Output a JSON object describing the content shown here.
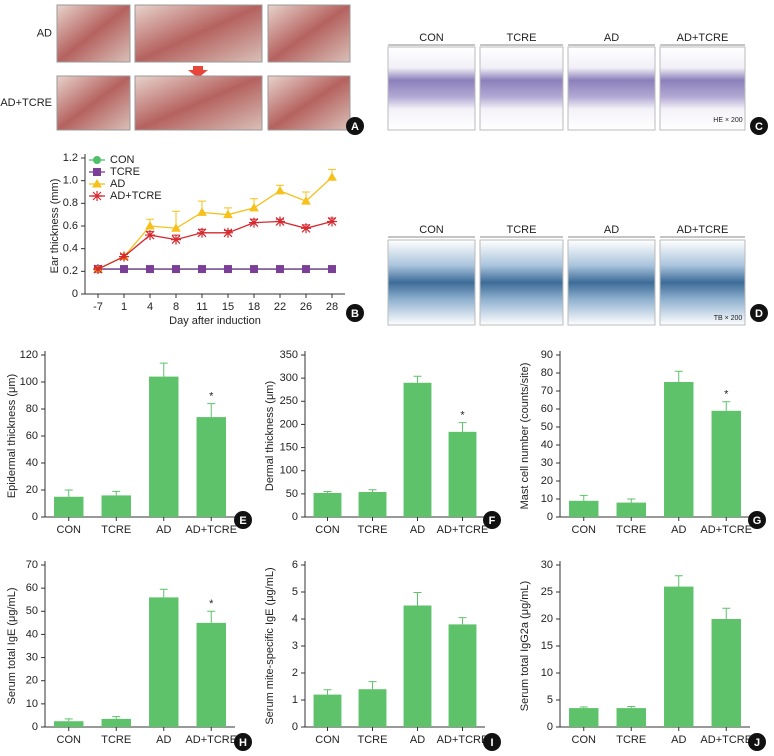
{
  "photo_panels": [
    {
      "letter": "A",
      "row_labels": [
        "AD",
        "AD+TCRE"
      ]
    },
    {
      "letter": "C",
      "column_labels": [
        "CON",
        "TCRE",
        "AD",
        "AD+TCRE"
      ],
      "stain": "HE × 200"
    },
    {
      "letter": "D",
      "column_labels": [
        "CON",
        "TCRE",
        "AD",
        "AD+TCRE"
      ],
      "stain": "TB × 200"
    }
  ],
  "chart_data": [
    {
      "type": "line",
      "letter": "B",
      "x_label": "Day after induction",
      "y_label": "Ear thickness (mm)",
      "categories": [
        "-7",
        "1",
        "4",
        "8",
        "11",
        "15",
        "18",
        "22",
        "26",
        "28"
      ],
      "ylim": [
        0,
        1.2
      ],
      "yticks": [
        0,
        0.2,
        0.4,
        0.6,
        0.8,
        {
          "value": 1,
          "label": "1.0"
        },
        1.2
      ],
      "legend": "top-left",
      "series": [
        {
          "name": "CON",
          "color": "#4fbf6a",
          "marker": "circle",
          "values": [
            0.22,
            0.22,
            0.22,
            0.22,
            0.22,
            0.22,
            0.22,
            0.22,
            0.22,
            0.22
          ],
          "errors": [
            0.01,
            0.01,
            0.01,
            0.01,
            0.01,
            0.01,
            0.01,
            0.01,
            0.01,
            0.01
          ]
        },
        {
          "name": "TCRE",
          "color": "#7b3f98",
          "marker": "square",
          "values": [
            0.22,
            0.22,
            0.22,
            0.22,
            0.22,
            0.22,
            0.22,
            0.22,
            0.22,
            0.22
          ],
          "errors": [
            0.01,
            0.01,
            0.01,
            0.01,
            0.01,
            0.01,
            0.01,
            0.01,
            0.01,
            0.01
          ]
        },
        {
          "name": "AD",
          "color": "#f5c11a",
          "marker": "triangle",
          "values": [
            0.22,
            0.33,
            0.6,
            0.58,
            0.72,
            0.7,
            0.76,
            0.91,
            0.82,
            1.03
          ],
          "errors": [
            0.01,
            0.02,
            0.06,
            0.15,
            0.1,
            0.06,
            0.08,
            0.05,
            0.08,
            0.07
          ]
        },
        {
          "name": "AD+TCRE",
          "color": "#d6282f",
          "marker": "star",
          "values": [
            0.22,
            0.33,
            0.52,
            0.48,
            0.54,
            0.54,
            0.63,
            0.64,
            0.58,
            0.64
          ],
          "errors": [
            0.01,
            0.02,
            0.03,
            0.04,
            0.03,
            0.02,
            0.03,
            0.02,
            0.03,
            0.03
          ]
        }
      ]
    },
    {
      "type": "bar",
      "letter": "E",
      "y_label": "Epidermal thickness (μm)",
      "color": "#5ec26a",
      "categories": [
        "CON",
        "TCRE",
        "AD",
        "AD+TCRE"
      ],
      "values": [
        15,
        16,
        104,
        74
      ],
      "errors": [
        5,
        3,
        10,
        10
      ],
      "significance": [
        null,
        null,
        null,
        "*"
      ],
      "ylim": [
        0,
        120
      ],
      "yticks": [
        0,
        20,
        40,
        60,
        80,
        100,
        120
      ]
    },
    {
      "type": "bar",
      "letter": "F",
      "y_label": "Dermal thickness (μm)",
      "color": "#5ec26a",
      "categories": [
        "CON",
        "TCRE",
        "AD",
        "AD+TCRE"
      ],
      "values": [
        52,
        54,
        290,
        184
      ],
      "errors": [
        3,
        5,
        14,
        20
      ],
      "significance": [
        null,
        null,
        null,
        "*"
      ],
      "ylim": [
        0,
        350
      ],
      "yticks": [
        0,
        50,
        100,
        150,
        200,
        250,
        300,
        350
      ]
    },
    {
      "type": "bar",
      "letter": "G",
      "y_label": "Mast cell number (counts/site)",
      "color": "#5ec26a",
      "categories": [
        "CON",
        "TCRE",
        "AD",
        "AD+TCRE"
      ],
      "values": [
        9,
        8,
        75,
        59
      ],
      "errors": [
        3,
        2,
        6,
        5
      ],
      "significance": [
        null,
        null,
        null,
        "*"
      ],
      "ylim": [
        0,
        90
      ],
      "yticks": [
        0,
        10,
        20,
        30,
        40,
        50,
        60,
        70,
        80,
        90
      ]
    },
    {
      "type": "bar",
      "letter": "H",
      "y_label": "Serum total IgE (μg/mL)",
      "color": "#5ec26a",
      "categories": [
        "CON",
        "TCRE",
        "AD",
        "AD+TCRE"
      ],
      "values": [
        2.5,
        3.5,
        56,
        45
      ],
      "errors": [
        1,
        1,
        3.5,
        5
      ],
      "significance": [
        null,
        null,
        null,
        "*"
      ],
      "ylim": [
        0,
        70
      ],
      "yticks": [
        0,
        10,
        20,
        30,
        40,
        50,
        60,
        70
      ]
    },
    {
      "type": "bar",
      "letter": "I",
      "y_label": "Serum mite-specific IgE (μg/mL)",
      "color": "#5ec26a",
      "categories": [
        "CON",
        "TCRE",
        "AD",
        "AD+TCRE"
      ],
      "values": [
        1.2,
        1.4,
        4.5,
        3.8
      ],
      "errors": [
        0.18,
        0.28,
        0.48,
        0.25
      ],
      "ylim": [
        0,
        6
      ],
      "yticks": [
        0,
        1,
        2,
        3,
        4,
        5,
        6
      ]
    },
    {
      "type": "bar",
      "letter": "J",
      "y_label": "Serum total IgG2a (μg/mL)",
      "color": "#5ec26a",
      "categories": [
        "CON",
        "TCRE",
        "AD",
        "AD+TCRE"
      ],
      "values": [
        3.5,
        3.5,
        26,
        20
      ],
      "errors": [
        0.2,
        0.3,
        2,
        2
      ],
      "ylim": [
        0,
        30
      ],
      "yticks": [
        0,
        5,
        10,
        15,
        20,
        25,
        30
      ]
    }
  ]
}
